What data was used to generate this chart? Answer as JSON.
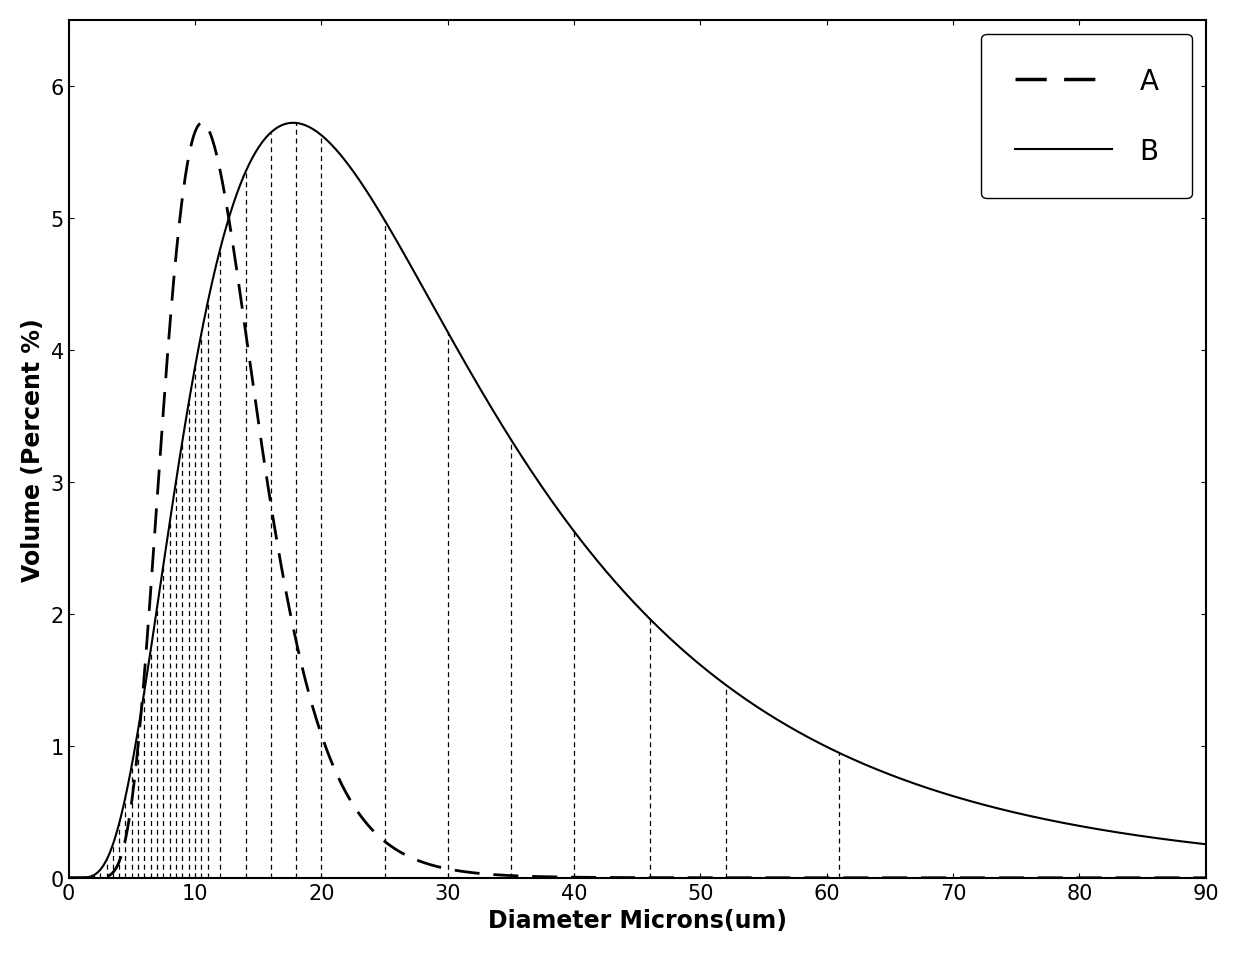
{
  "title": "",
  "xlabel": "Diameter Microns(um)",
  "ylabel": "Volume (Percent %)",
  "xlim": [
    0,
    90
  ],
  "ylim": [
    0,
    6.5
  ],
  "xticks": [
    0,
    10,
    20,
    30,
    40,
    50,
    60,
    70,
    80,
    90
  ],
  "yticks": [
    0,
    1,
    2,
    3,
    4,
    5,
    6
  ],
  "curve_A": {
    "mu": 2.48,
    "sigma": 0.35,
    "peak_target": 5.72,
    "label": "A",
    "linestyle": "--",
    "color": "black",
    "linewidth": 2.0
  },
  "curve_B": {
    "mu": 3.3,
    "sigma": 0.65,
    "peak_target": 5.72,
    "label": "B",
    "linestyle": "-",
    "color": "black",
    "linewidth": 1.5
  },
  "vline_color": "black",
  "vline_linewidth": 0.9,
  "vline_positions_dense": [
    0.5,
    1.0,
    1.5,
    2.0,
    2.5,
    3.0,
    3.5,
    4.0,
    4.5,
    5.0,
    5.5,
    6.0,
    6.5,
    7.0,
    7.5,
    8.0,
    8.5,
    9.0,
    9.5,
    10.0,
    10.5,
    11.0
  ],
  "vline_positions_sparse": [
    12.0,
    14.0,
    16.0,
    18.0,
    20.0,
    25.0,
    30.0,
    35.0,
    40.0,
    46.0,
    52.0,
    61.0
  ],
  "background_color": "white",
  "legend_fontsize": 20,
  "axis_fontsize": 17,
  "tick_fontsize": 15
}
